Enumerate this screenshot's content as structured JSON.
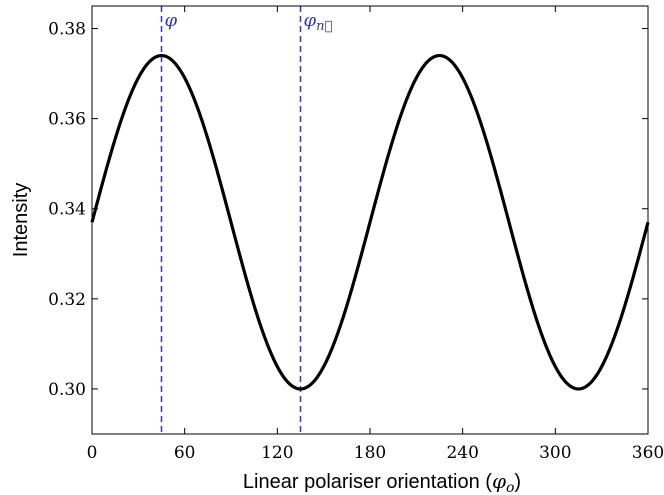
{
  "chart_data": {
    "type": "line",
    "xlabel": "Linear polariser orientation (",
    "xlabel_symbol": "φ",
    "xlabel_subscript": "o",
    "xlabel_close": ")",
    "ylabel": "Intensity",
    "xlim": [
      0,
      360
    ],
    "ylim": [
      0.29,
      0.385
    ],
    "xticks": [
      0,
      60,
      120,
      180,
      240,
      300,
      360
    ],
    "yticks": [
      0.3,
      0.32,
      0.34,
      0.36,
      0.38
    ],
    "ytick_labels": [
      "0.30",
      "0.32",
      "0.34",
      "0.36",
      "0.38"
    ],
    "grid": false,
    "series": [
      {
        "color": "#000000",
        "mean": 0.337,
        "amplitude": 0.037,
        "peak_x": 45,
        "period": 180
      }
    ],
    "annotations": [
      {
        "x": 45,
        "symbol": "φ",
        "subscript": "",
        "color": "#3333cc"
      },
      {
        "x": 135,
        "symbol": "φ",
        "subscript": "n⃗",
        "color": "#3333cc"
      }
    ]
  }
}
